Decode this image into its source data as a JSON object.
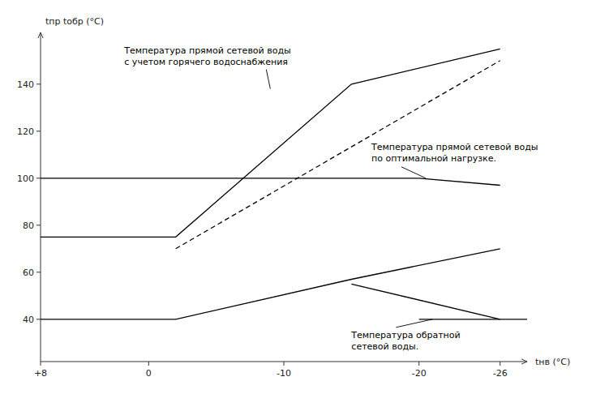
{
  "chart_data": {
    "type": "line",
    "xlabel": "tнв (°C)",
    "ylabel": "tпр tобр (°C)",
    "xlim": [
      8,
      -28
    ],
    "ylim": [
      22,
      162
    ],
    "xticks": [
      {
        "value": 8,
        "label": "+8"
      },
      0,
      -10,
      -20,
      -26
    ],
    "yticks": [
      40,
      60,
      80,
      100,
      120,
      140
    ],
    "grid": false,
    "series": [
      {
        "x": [
          8,
          -2,
          -15,
          -26
        ],
        "values": [
          75,
          75,
          140,
          155
        ],
        "color": "#000000",
        "line_style": "solid"
      },
      {
        "x": [
          -2,
          -26
        ],
        "values": [
          70,
          150
        ],
        "color": "#000000",
        "line_style": "dashed"
      },
      {
        "x": [
          8,
          -20,
          -26
        ],
        "values": [
          100,
          100,
          97
        ],
        "color": "#000000",
        "line_style": "solid"
      },
      {
        "x": [
          8,
          -2,
          -15,
          -26
        ],
        "values": [
          40,
          40,
          57,
          70
        ],
        "color": "#000000",
        "line_style": "solid"
      },
      {
        "x": [
          -15,
          -26
        ],
        "values": [
          55,
          40
        ],
        "color": "#000000",
        "line_style": "solid"
      },
      {
        "x": [
          -20,
          -28
        ],
        "values": [
          40,
          40
        ],
        "color": "#000000",
        "line_style": "solid"
      }
    ],
    "annotations": [
      {
        "text": "Температура прямой сетевой воды\nс учетом горячего водоснабжения",
        "x": -9,
        "y": 138
      },
      {
        "text": "Температура прямой сетевой воды\nпо оптимальной нагрузке.",
        "x": -20.5,
        "y": 100
      },
      {
        "text": "Температура обратной\nсетевой воды.",
        "x": -21,
        "y": 40
      }
    ]
  }
}
